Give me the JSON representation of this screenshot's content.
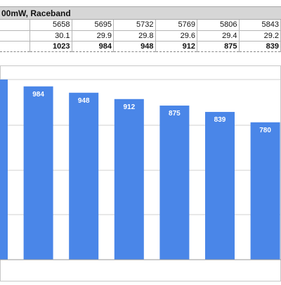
{
  "header": {
    "title": "00mW, Raceband"
  },
  "table": {
    "columns": [
      "5658",
      "5695",
      "5732",
      "5769",
      "5806",
      "5843"
    ],
    "rows": [
      {
        "values": [
          "30.1",
          "29.9",
          "29.8",
          "29.6",
          "29.4",
          "29.2"
        ],
        "bold": false
      },
      {
        "values": [
          "1023",
          "984",
          "948",
          "912",
          "875",
          "839"
        ],
        "bold": true
      }
    ]
  },
  "chart_data": {
    "type": "bar",
    "title": "",
    "categories": [
      "",
      "",
      "",
      "",
      "",
      "",
      ""
    ],
    "values": [
      1023,
      984,
      948,
      912,
      875,
      839,
      780
    ],
    "data_labels": [
      "",
      "984",
      "948",
      "912",
      "875",
      "839",
      "780"
    ],
    "bar_color": "#4a86e8",
    "grid": true,
    "gridline_color": "#d0d0d0",
    "ylim": [
      0,
      1023
    ]
  }
}
